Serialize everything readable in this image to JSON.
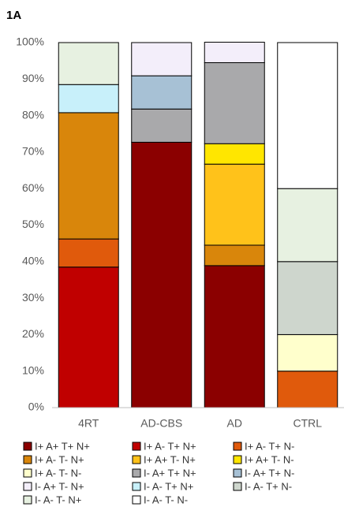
{
  "chart_data": {
    "type": "stacked_bar",
    "title": "1A",
    "categories": [
      "4RT",
      "AD-CBS",
      "AD",
      "CTRL"
    ],
    "series": [
      {
        "name": "I+ A+ T+ N+",
        "color": "#8b0000",
        "values": [
          0,
          72.7,
          38.9,
          0
        ]
      },
      {
        "name": "I+ A- T+ N+",
        "color": "#c00000",
        "values": [
          38.5,
          0,
          0,
          0
        ]
      },
      {
        "name": "I+ A- T+ N-",
        "color": "#e05a0c",
        "values": [
          7.7,
          0,
          0,
          10
        ]
      },
      {
        "name": "I+ A- T- N+",
        "color": "#d9860b",
        "values": [
          34.6,
          0,
          5.6,
          0
        ]
      },
      {
        "name": "I+ A+ T- N+",
        "color": "#ffc21a",
        "values": [
          0,
          0,
          22.2,
          0
        ]
      },
      {
        "name": "I+ A+ T- N-",
        "color": "#ffe600",
        "values": [
          0,
          0,
          5.6,
          0
        ]
      },
      {
        "name": "I+ A- T- N-",
        "color": "#ffffcc",
        "values": [
          0,
          0,
          0,
          10
        ]
      },
      {
        "name": "I- A+ T+ N+",
        "color": "#a9a9ab",
        "values": [
          0,
          9.1,
          22.2,
          0
        ]
      },
      {
        "name": "I- A+ T+ N-",
        "color": "#a7c1d5",
        "values": [
          0,
          9.1,
          0,
          0
        ]
      },
      {
        "name": "I- A+ T- N+",
        "color": "#f3eefa",
        "values": [
          0,
          9.1,
          5.6,
          0
        ]
      },
      {
        "name": "I- A- T+ N+",
        "color": "#c8f0fa",
        "values": [
          7.7,
          0,
          0,
          0
        ]
      },
      {
        "name": "I- A- T+ N-",
        "color": "#ced6cd",
        "values": [
          0,
          0,
          0,
          20
        ]
      },
      {
        "name": "I- A- T- N+",
        "color": "#e7f1e1",
        "values": [
          11.5,
          0,
          0,
          20
        ]
      },
      {
        "name": "I- A- T- N-",
        "color": "#ffffff",
        "values": [
          0,
          0,
          0,
          40
        ]
      }
    ],
    "ylim": [
      0,
      100
    ],
    "yticks": [
      {
        "value": 0,
        "label": "0%"
      },
      {
        "value": 10,
        "label": "10%"
      },
      {
        "value": 20,
        "label": "20%"
      },
      {
        "value": 30,
        "label": "30%"
      },
      {
        "value": 40,
        "label": "40%"
      },
      {
        "value": 50,
        "label": "50%"
      },
      {
        "value": 60,
        "label": "60%"
      },
      {
        "value": 70,
        "label": "70%"
      },
      {
        "value": 80,
        "label": "80%"
      },
      {
        "value": 90,
        "label": "90%"
      },
      {
        "value": 100,
        "label": "100%"
      }
    ],
    "grid": false
  }
}
